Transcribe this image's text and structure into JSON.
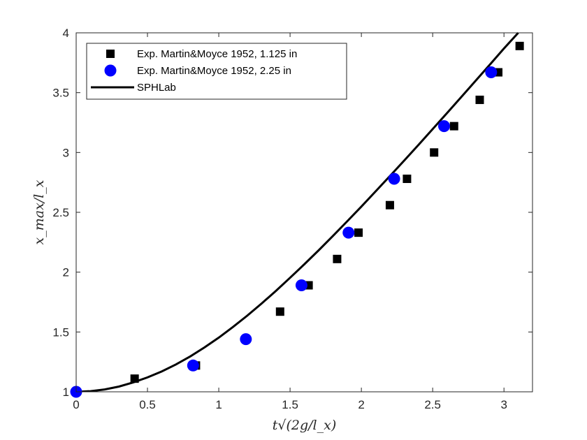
{
  "chart_data": {
    "type": "scatter",
    "xlabel": "t√(2g/l_x)",
    "ylabel": "x_max/l_x",
    "xlim": [
      0,
      3.2
    ],
    "ylim": [
      1,
      4
    ],
    "x_ticks": [
      "0",
      "0.5",
      "1",
      "1.5",
      "2",
      "2.5",
      "3"
    ],
    "y_ticks": [
      "1",
      "1.5",
      "2",
      "2.5",
      "3",
      "3.5",
      "4"
    ],
    "legend_position": "top-left",
    "grid": false,
    "series": [
      {
        "name": "Exp. Martin&Moyce 1952, 1.125 in",
        "kind": "scatter",
        "marker": "square",
        "color": "#000000",
        "points": [
          [
            0,
            1.0
          ],
          [
            0.41,
            1.11
          ],
          [
            0.84,
            1.22
          ],
          [
            1.43,
            1.67
          ],
          [
            1.63,
            1.89
          ],
          [
            1.83,
            2.11
          ],
          [
            1.98,
            2.33
          ],
          [
            2.2,
            2.56
          ],
          [
            2.32,
            2.78
          ],
          [
            2.51,
            3.0
          ],
          [
            2.65,
            3.22
          ],
          [
            2.83,
            3.44
          ],
          [
            2.96,
            3.67
          ],
          [
            3.11,
            3.89
          ]
        ]
      },
      {
        "name": "Exp. Martin&Moyce 1952, 2.25 in",
        "kind": "scatter",
        "marker": "circle",
        "color": "#0000ff",
        "points": [
          [
            0,
            1.0
          ],
          [
            0.82,
            1.22
          ],
          [
            1.19,
            1.44
          ],
          [
            1.58,
            1.89
          ],
          [
            1.91,
            2.33
          ],
          [
            2.23,
            2.78
          ],
          [
            2.58,
            3.22
          ],
          [
            2.91,
            3.67
          ]
        ]
      },
      {
        "name": "SPHLab",
        "kind": "line",
        "color": "#000000",
        "points": [
          [
            0,
            1.0
          ],
          [
            0.1,
            1.005
          ],
          [
            0.2,
            1.02
          ],
          [
            0.3,
            1.044
          ],
          [
            0.4,
            1.078
          ],
          [
            0.5,
            1.12
          ],
          [
            0.6,
            1.17
          ],
          [
            0.7,
            1.229
          ],
          [
            0.8,
            1.296
          ],
          [
            0.9,
            1.371
          ],
          [
            1.0,
            1.453
          ],
          [
            1.1,
            1.542
          ],
          [
            1.2,
            1.637
          ],
          [
            1.3,
            1.738
          ],
          [
            1.4,
            1.843
          ],
          [
            1.5,
            1.953
          ],
          [
            1.6,
            2.066
          ],
          [
            1.7,
            2.182
          ],
          [
            1.8,
            2.302
          ],
          [
            1.9,
            2.424
          ],
          [
            2.0,
            2.548
          ],
          [
            2.1,
            2.675
          ],
          [
            2.2,
            2.803
          ],
          [
            2.3,
            2.932
          ],
          [
            2.4,
            3.063
          ],
          [
            2.5,
            3.196
          ],
          [
            2.6,
            3.329
          ],
          [
            2.7,
            3.463
          ],
          [
            2.8,
            3.598
          ],
          [
            2.9,
            3.733
          ],
          [
            3.0,
            3.869
          ],
          [
            3.1,
            4.0
          ]
        ]
      }
    ]
  }
}
